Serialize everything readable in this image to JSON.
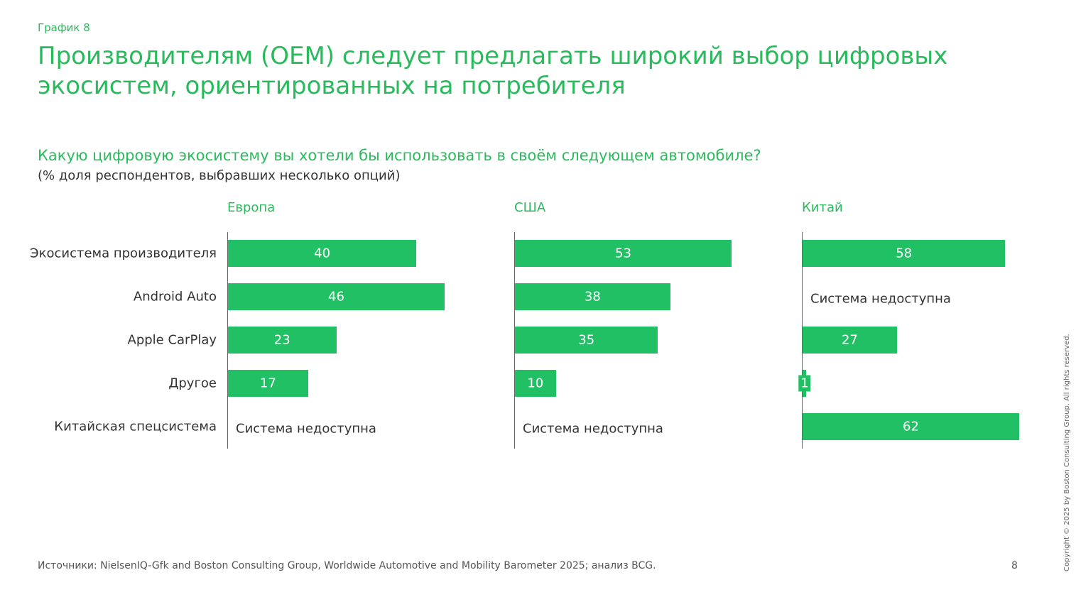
{
  "kicker": "График 8",
  "title": "Производителям (OEM) следует предлагать широкий выбор цифровых экосистем, ориентированных на потребителя",
  "question": "Какую цифровую экосистему вы хотели бы использовать в своём следующем автомобиле?",
  "note": "(% доля респондентов, выбравших несколько опций)",
  "source": "Источники: NielsenIQ-Gfk and Boston Consulting Group, Worldwide Automotive and Mobility Barometer 2025; анализ BCG.",
  "page_number": "8",
  "copyright": "Copyright © 2025 by Boston Consulting Group. All rights reserved.",
  "colors": {
    "bar": "#22c064",
    "accent": "#29ba5c"
  },
  "chart_data": {
    "type": "bar",
    "orientation": "horizontal",
    "categories": [
      "Экосистема производителя",
      "Android Auto",
      "Apple CarPlay",
      "Другое",
      "Китайская спецсистема"
    ],
    "not_available_label": "Система недоступна",
    "series": [
      {
        "name": "Европа",
        "values": [
          40,
          46,
          23,
          17,
          null
        ]
      },
      {
        "name": "США",
        "values": [
          53,
          38,
          35,
          10,
          null
        ]
      },
      {
        "name": "Китай",
        "values": [
          58,
          null,
          27,
          1,
          62
        ]
      }
    ]
  }
}
